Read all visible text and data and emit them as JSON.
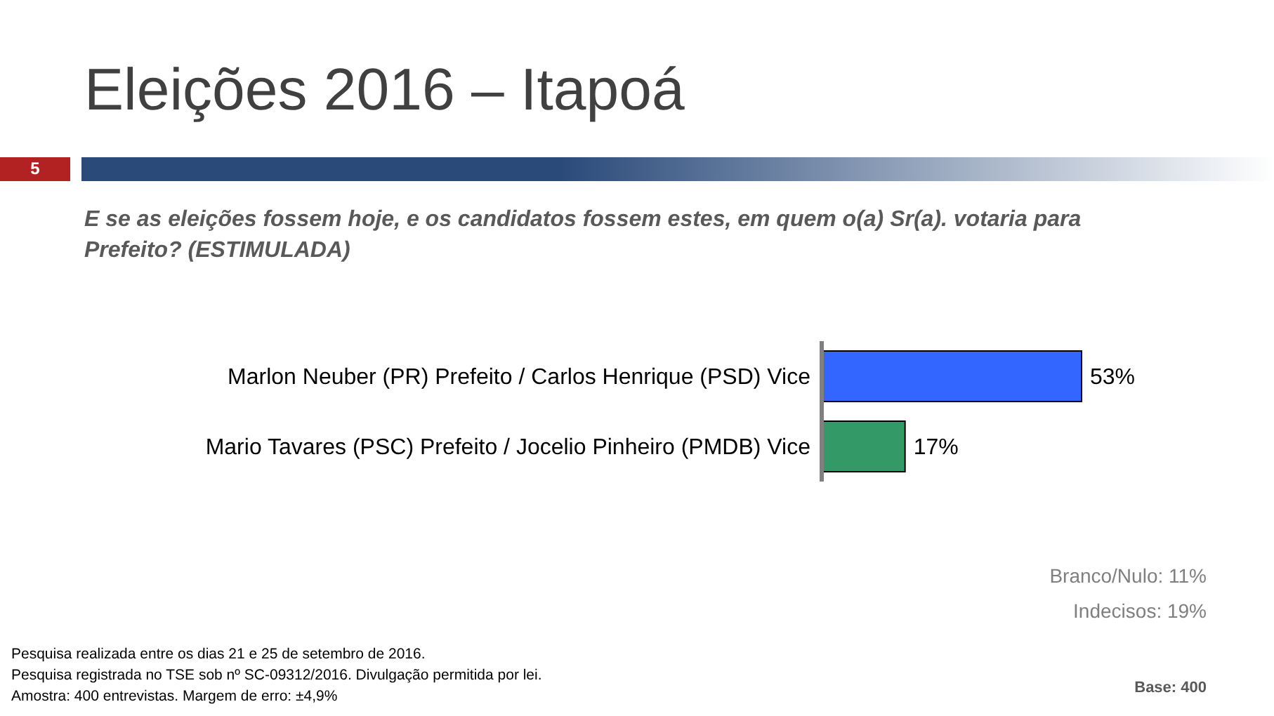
{
  "chart_data": {
    "type": "bar",
    "orientation": "horizontal",
    "title": "Eleições 2016 – Itapoá",
    "subtitle": "E se as eleições fossem hoje, e os candidatos fossem estes, em quem o(a) Sr(a). votaria para Prefeito? (ESTIMULADA)",
    "categories": [
      "Marlon Neuber (PR) Prefeito / Carlos Henrique (PSD) Vice",
      "Mario Tavares (PSC) Prefeito / Jocelio Pinheiro (PMDB) Vice"
    ],
    "values": [
      53,
      17
    ],
    "colors": [
      "#3366ff",
      "#339966"
    ],
    "value_labels": [
      "53%",
      "17%"
    ],
    "annotations": [
      "5",
      "Branco/Nulo: 11%",
      "Indecisos: 19%",
      "Pesquisa realizada entre os dias 21 e 25 de setembro de 2016.",
      "Pesquisa registrada no TSE sob nº SC-09312/2016.  Divulgação permitida por lei.",
      "Amostra: 400 entrevistas. Margem de erro: ±4,9%",
      "Base: 400"
    ]
  }
}
